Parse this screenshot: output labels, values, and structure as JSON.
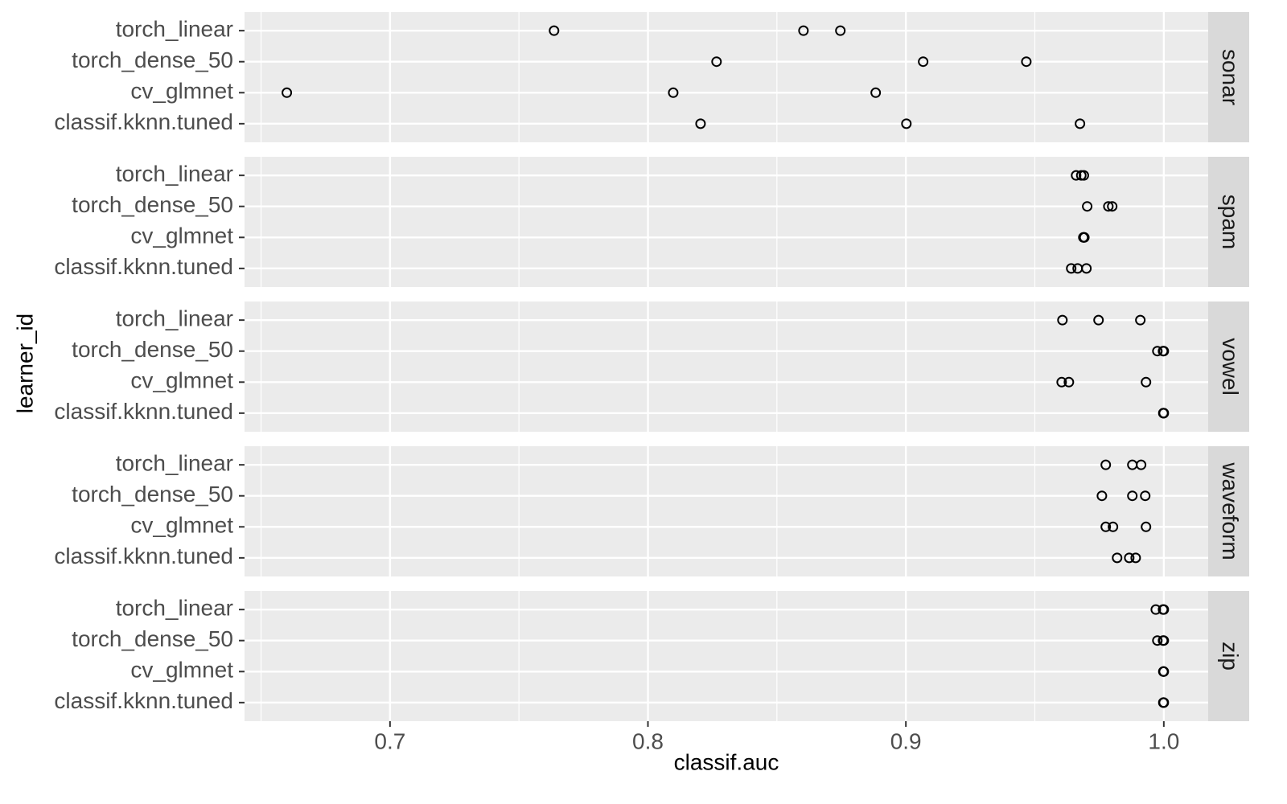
{
  "chart_data": {
    "type": "dotplot",
    "x_label": "classif.auc",
    "y_label": "learner_id",
    "categories": [
      "torch_linear",
      "torch_dense_50",
      "cv_glmnet",
      "classif.kknn.tuned"
    ],
    "xlim": [
      0.6436,
      1.0172
    ],
    "xticks": [
      0.7,
      0.8,
      0.9,
      {
        "value": 1,
        "label": "1.0"
      }
    ],
    "xminor": [
      0.65,
      0.75,
      0.85,
      0.95
    ],
    "grid": true,
    "point_color": "#000000",
    "facets": [
      {
        "name": "sonar",
        "values": [
          [
            0.7636,
            0.8603,
            0.8746
          ],
          [
            0.8266,
            0.9067,
            0.9467
          ],
          [
            0.66,
            0.8098,
            0.8883
          ],
          [
            0.8204,
            0.9002,
            0.9675
          ]
        ]
      },
      {
        "name": "spam",
        "values": [
          [
            0.966,
            0.968,
            0.969
          ],
          [
            0.9703,
            0.9785,
            0.98
          ],
          [
            0.9688,
            0.969,
            0.9692
          ],
          [
            0.9641,
            0.9666,
            0.97
          ]
        ]
      },
      {
        "name": "vowel",
        "values": [
          [
            0.9607,
            0.9747,
            0.9909
          ],
          [
            0.9975,
            0.9997,
            1.0
          ],
          [
            0.9604,
            0.9632,
            0.9931
          ],
          [
            0.9998,
            0.9999,
            1.0
          ]
        ]
      },
      {
        "name": "waveform",
        "values": [
          [
            0.9775,
            0.9878,
            0.9912
          ],
          [
            0.976,
            0.9878,
            0.9928
          ],
          [
            0.9775,
            0.9803,
            0.9931
          ],
          [
            0.9819,
            0.9866,
            0.9891
          ]
        ]
      },
      {
        "name": "zip",
        "values": [
          [
            0.9969,
            0.9997,
            1.0
          ],
          [
            0.9975,
            0.9997,
            1.0
          ],
          [
            0.9998,
            0.9999,
            1.0
          ],
          [
            0.9998,
            0.9999,
            1.0
          ]
        ]
      }
    ]
  }
}
